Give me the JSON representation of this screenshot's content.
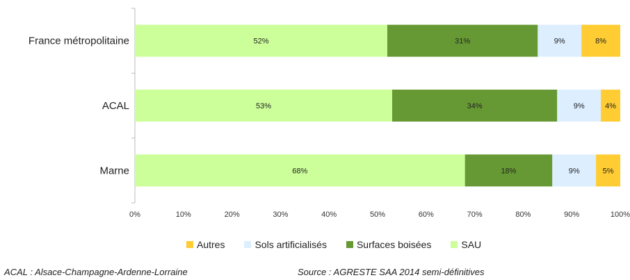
{
  "chart_data": {
    "type": "bar",
    "orientation": "horizontal",
    "stacked": true,
    "categories": [
      "France métropolitaine",
      "ACAL",
      "Marne"
    ],
    "series": [
      {
        "name": "SAU",
        "values": [
          52,
          53,
          68
        ],
        "labels": [
          "52%",
          "53%",
          "68%"
        ],
        "color": "#ccff99"
      },
      {
        "name": "Surfaces boisées",
        "values": [
          31,
          34,
          18
        ],
        "labels": [
          "31%",
          "34%",
          "18%"
        ],
        "color": "#669933"
      },
      {
        "name": "Sols artificialisés",
        "values": [
          9,
          9,
          9
        ],
        "labels": [
          "9%",
          "9%",
          "9%"
        ],
        "color": "#ddeeff"
      },
      {
        "name": "Autres",
        "values": [
          8,
          4,
          5
        ],
        "labels": [
          "8%",
          "4%",
          "5%"
        ],
        "color": "#ffcc33"
      }
    ],
    "x_ticks": [
      "0%",
      "10%",
      "20%",
      "30%",
      "40%",
      "50%",
      "60%",
      "70%",
      "80%",
      "90%",
      "100%"
    ],
    "xlim": [
      0,
      100
    ],
    "grid": false,
    "legend": {
      "placement": "bottom",
      "order": [
        "Autres",
        "Sols artificialisés",
        "Surfaces boisées",
        "SAU"
      ]
    }
  },
  "footer": {
    "left": "ACAL : Alsace-Champagne-Ardenne-Lorraine",
    "right": "Source : AGRESTE SAA 2014 semi-définitives"
  }
}
